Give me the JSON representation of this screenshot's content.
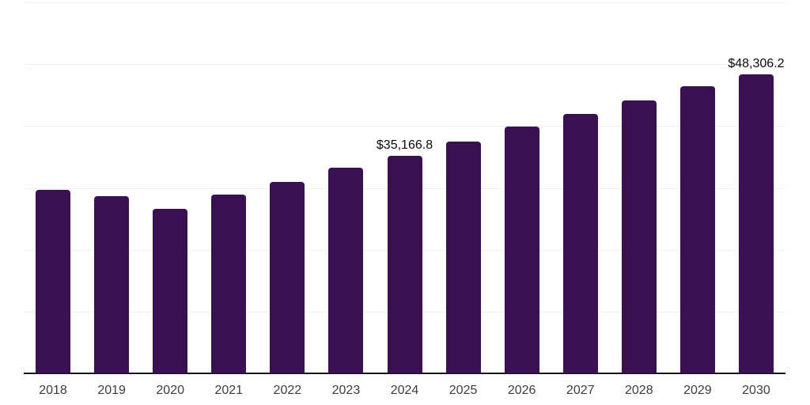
{
  "chart_data": {
    "type": "bar",
    "title": "",
    "xlabel": "",
    "ylabel": "",
    "categories": [
      "2018",
      "2019",
      "2020",
      "2021",
      "2022",
      "2023",
      "2024",
      "2025",
      "2026",
      "2027",
      "2028",
      "2029",
      "2030"
    ],
    "values": [
      29700,
      28600,
      26600,
      28900,
      31000,
      33300,
      35166.8,
      37500,
      39900,
      42000,
      44200,
      46400,
      48306.2
    ],
    "data_labels": {
      "2024": "$35,166.8",
      "2030": "$48,306.2"
    },
    "ylim": [
      0,
      60000
    ],
    "gridline_step": 10000,
    "grid": true,
    "legend_position": "none",
    "colors": {
      "bar": "#3A1150",
      "gridline": "#F0F0F0",
      "axis": "#161616",
      "tick_label": "#3D3D3D",
      "data_label": "#0A0A0A",
      "background": "#FFFFFF"
    }
  }
}
